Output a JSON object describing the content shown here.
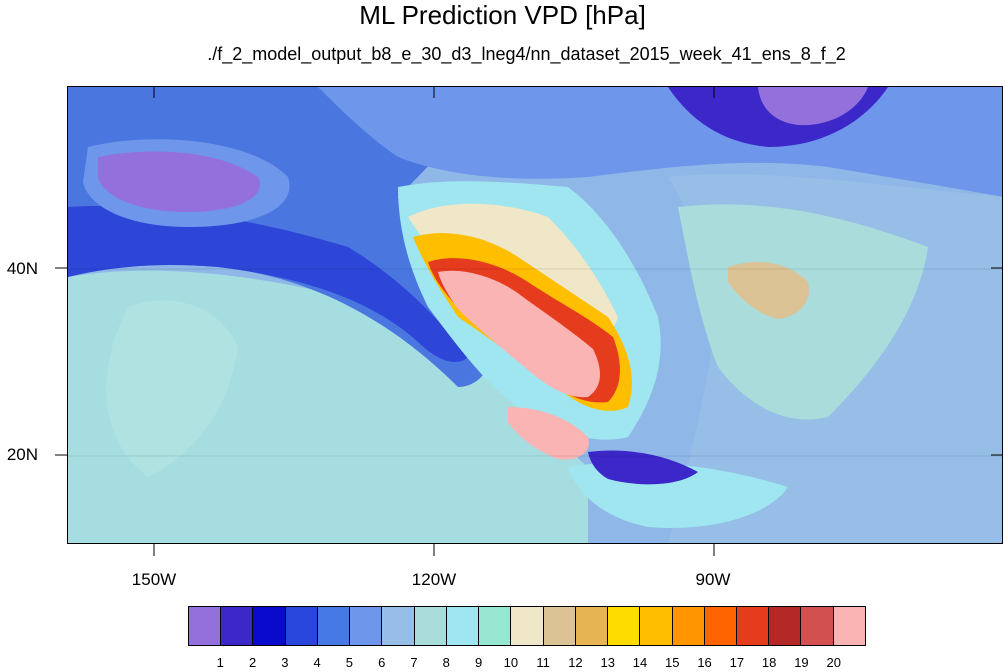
{
  "title": "ML Prediction VPD [hPa]",
  "subtitle": "./f_2_model_output_b8_e_30_d3_lneg4/nn_dataset_2015_week_41_ens_8_f_2",
  "lat_labels": [
    "40N",
    "20N"
  ],
  "lon_labels": [
    "150W",
    "120W",
    "90W"
  ],
  "colorbar": {
    "labels": [
      "1",
      "2",
      "3",
      "4",
      "5",
      "6",
      "7",
      "8",
      "9",
      "10",
      "11",
      "12",
      "13",
      "14",
      "15",
      "16",
      "17",
      "18",
      "19",
      "20"
    ],
    "colors": [
      "#9370db",
      "#3c28c8",
      "#0a0acd",
      "#2846dc",
      "#4678e6",
      "#6e96eb",
      "#96bee6",
      "#aadcdc",
      "#a0e6f0",
      "#96e6d2",
      "#f0e6c8",
      "#dcc396",
      "#e6b450",
      "#ffdc00",
      "#ffbe00",
      "#ff9600",
      "#ff6400",
      "#e63c1e",
      "#b42828",
      "#d25050",
      "#fab4b4"
    ]
  }
}
